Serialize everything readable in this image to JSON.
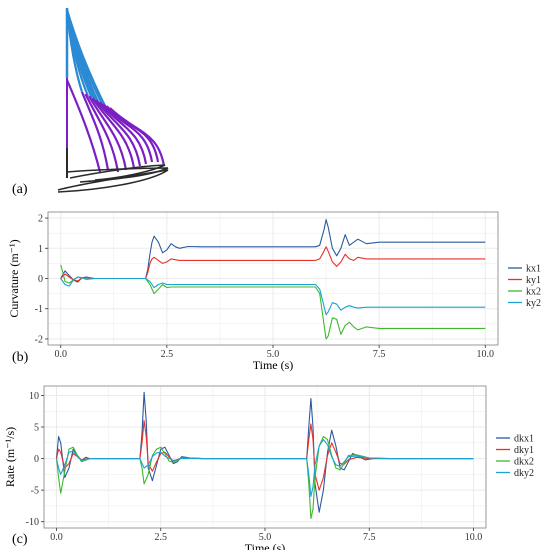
{
  "panel_labels": {
    "a": "(a)",
    "b": "(b)",
    "c": "(c)"
  },
  "colors": {
    "kx1": "#2c5aa0",
    "ky1": "#e8312a",
    "kx2": "#3fb82e",
    "ky2": "#1aa3d4",
    "diagram_blue": "#2a8ad4",
    "diagram_purple": "#7b1fc4",
    "diagram_dark": "#2b2b2b",
    "grid": "#ebebeb",
    "panel_border": "#7f7f7f"
  },
  "chart_data": [
    {
      "type": "line",
      "xlabel": "Time (s)",
      "ylabel": "Curvature (m⁻¹)",
      "xlim": [
        -0.3,
        10.3
      ],
      "ylim": [
        -2.2,
        2.2
      ],
      "xticks": [
        0.0,
        2.5,
        5.0,
        7.5,
        10.0
      ],
      "xtick_labels": [
        "0.0",
        "2.5",
        "5.0",
        "7.5",
        "10.0"
      ],
      "yticks": [
        -2,
        -1,
        0,
        1,
        2
      ],
      "ytick_labels": [
        "-2",
        "-1",
        "0",
        "1",
        "2"
      ],
      "grid": true,
      "legend_position": "right",
      "series": [
        {
          "name": "kx1",
          "x": [
            0,
            0.1,
            0.2,
            0.3,
            0.4,
            0.5,
            0.6,
            0.8,
            1.0,
            2.0,
            2.05,
            2.1,
            2.15,
            2.2,
            2.3,
            2.4,
            2.5,
            2.6,
            2.7,
            2.8,
            3.0,
            3.3,
            4.0,
            5.0,
            6.0,
            6.1,
            6.2,
            6.25,
            6.3,
            6.4,
            6.5,
            6.6,
            6.7,
            6.8,
            6.9,
            7.0,
            7.2,
            7.5,
            8.0,
            9.0,
            10.0
          ],
          "y": [
            0,
            0.25,
            0.1,
            -0.05,
            -0.12,
            0.02,
            0.05,
            0,
            0,
            0,
            0.3,
            0.8,
            1.2,
            1.4,
            1.2,
            0.85,
            0.95,
            1.15,
            1.05,
            1.0,
            1.06,
            1.05,
            1.05,
            1.05,
            1.05,
            1.1,
            1.6,
            1.95,
            1.7,
            1.0,
            0.75,
            1.0,
            1.45,
            1.1,
            1.2,
            1.3,
            1.15,
            1.2,
            1.2,
            1.2,
            1.2
          ]
        },
        {
          "name": "ky1",
          "x": [
            0,
            0.1,
            0.2,
            0.3,
            0.4,
            0.5,
            0.6,
            0.8,
            1.0,
            2.0,
            2.05,
            2.1,
            2.15,
            2.2,
            2.3,
            2.4,
            2.5,
            2.6,
            2.8,
            3.0,
            4.0,
            5.0,
            6.0,
            6.1,
            6.2,
            6.25,
            6.3,
            6.4,
            6.5,
            6.6,
            6.7,
            6.8,
            6.9,
            7.0,
            7.2,
            7.5,
            8.0,
            9.0,
            10.0
          ],
          "y": [
            0,
            0.15,
            0.05,
            -0.05,
            -0.08,
            0.02,
            0.03,
            0,
            0,
            0,
            0.2,
            0.5,
            0.65,
            0.7,
            0.6,
            0.5,
            0.55,
            0.65,
            0.6,
            0.6,
            0.6,
            0.6,
            0.6,
            0.65,
            0.9,
            1.05,
            0.9,
            0.55,
            0.4,
            0.55,
            0.8,
            0.65,
            0.6,
            0.7,
            0.65,
            0.65,
            0.65,
            0.65,
            0.65
          ]
        },
        {
          "name": "kx2",
          "x": [
            0,
            0.05,
            0.1,
            0.2,
            0.3,
            0.4,
            0.5,
            0.6,
            0.8,
            1.0,
            2.0,
            2.1,
            2.2,
            2.3,
            2.4,
            2.5,
            2.6,
            2.8,
            3.0,
            3.3,
            4.0,
            5.0,
            6.0,
            6.1,
            6.2,
            6.25,
            6.3,
            6.4,
            6.5,
            6.6,
            6.7,
            6.8,
            6.9,
            7.0,
            7.2,
            7.5,
            8.0,
            9.0,
            10.0
          ],
          "y": [
            0.45,
            0.2,
            -0.1,
            -0.15,
            -0.05,
            0.05,
            0.02,
            -0.03,
            0,
            0,
            0,
            -0.2,
            -0.5,
            -0.35,
            -0.2,
            -0.3,
            -0.28,
            -0.28,
            -0.28,
            -0.28,
            -0.28,
            -0.28,
            -0.28,
            -0.5,
            -1.5,
            -2.0,
            -1.9,
            -1.3,
            -1.35,
            -1.85,
            -1.55,
            -1.45,
            -1.6,
            -1.7,
            -1.6,
            -1.65,
            -1.65,
            -1.65,
            -1.65
          ]
        },
        {
          "name": "ky2",
          "x": [
            0,
            0.1,
            0.2,
            0.3,
            0.4,
            0.5,
            0.6,
            0.8,
            1.0,
            2.0,
            2.1,
            2.2,
            2.3,
            2.4,
            2.5,
            2.6,
            2.8,
            3.0,
            4.0,
            5.0,
            6.0,
            6.1,
            6.2,
            6.25,
            6.3,
            6.4,
            6.5,
            6.6,
            6.7,
            6.8,
            6.9,
            7.0,
            7.2,
            7.5,
            8.0,
            9.0,
            10.0
          ],
          "y": [
            0,
            -0.2,
            -0.25,
            -0.05,
            0.05,
            0.03,
            -0.02,
            0,
            0,
            0,
            -0.1,
            -0.3,
            -0.2,
            -0.15,
            -0.2,
            -0.2,
            -0.2,
            -0.2,
            -0.2,
            -0.2,
            -0.2,
            -0.35,
            -0.9,
            -1.2,
            -1.1,
            -0.8,
            -0.85,
            -1.05,
            -0.95,
            -0.9,
            -0.95,
            -0.98,
            -0.95,
            -0.95,
            -0.95,
            -0.95,
            -0.95
          ]
        }
      ]
    },
    {
      "type": "line",
      "xlabel": "Time (s)",
      "ylabel": "Rate (m⁻¹/s)",
      "xlim": [
        -0.3,
        10.3
      ],
      "ylim": [
        -11,
        11.5
      ],
      "xticks": [
        0.0,
        2.5,
        5.0,
        7.5,
        10.0
      ],
      "xtick_labels": [
        "0.0",
        "2.5",
        "5.0",
        "7.5",
        "10.0"
      ],
      "yticks": [
        -10,
        -5,
        0,
        5,
        10
      ],
      "ytick_labels": [
        "-10",
        "-5",
        "0",
        "5",
        "10"
      ],
      "grid": true,
      "legend_position": "right",
      "series": [
        {
          "name": "dkx1",
          "x": [
            0,
            0.05,
            0.1,
            0.2,
            0.3,
            0.4,
            0.5,
            0.6,
            0.7,
            0.8,
            1.0,
            2.0,
            2.05,
            2.1,
            2.15,
            2.2,
            2.3,
            2.4,
            2.5,
            2.6,
            2.7,
            2.8,
            2.9,
            3.0,
            3.2,
            3.5,
            4.0,
            5.0,
            6.0,
            6.05,
            6.1,
            6.15,
            6.2,
            6.3,
            6.4,
            6.5,
            6.6,
            6.7,
            6.8,
            6.9,
            7.0,
            7.1,
            7.2,
            7.4,
            7.6,
            8.0,
            10.0
          ],
          "y": [
            0,
            3.5,
            2.5,
            -3.0,
            -1.5,
            1.5,
            0.5,
            -0.3,
            0.2,
            0,
            0,
            0,
            4.0,
            10.5,
            6.0,
            -1.5,
            -3.5,
            -1.0,
            1.5,
            1.8,
            0.5,
            -0.8,
            -0.5,
            0.3,
            0.1,
            0,
            0,
            0,
            0,
            5.0,
            9.5,
            5.0,
            -4.0,
            -8.5,
            -5.0,
            1.0,
            4.5,
            2.0,
            -1.5,
            -1.8,
            -0.5,
            0.8,
            0.5,
            -0.2,
            0,
            0,
            0
          ]
        },
        {
          "name": "dky1",
          "x": [
            0,
            0.05,
            0.1,
            0.2,
            0.3,
            0.4,
            0.5,
            0.6,
            0.8,
            1.0,
            2.0,
            2.05,
            2.1,
            2.15,
            2.2,
            2.3,
            2.4,
            2.5,
            2.6,
            2.7,
            2.8,
            3.0,
            3.5,
            4.0,
            5.0,
            6.0,
            6.05,
            6.1,
            6.15,
            6.2,
            6.3,
            6.4,
            6.5,
            6.6,
            6.7,
            6.8,
            6.9,
            7.0,
            7.2,
            7.5,
            8.0,
            10.0
          ],
          "y": [
            0,
            1.5,
            1.0,
            -1.5,
            -0.8,
            0.8,
            0.3,
            -0.2,
            0,
            0,
            0,
            2.5,
            6.0,
            3.5,
            -0.8,
            -2.0,
            -0.5,
            0.8,
            1.0,
            0.3,
            -0.4,
            0.1,
            0,
            0,
            0,
            0,
            3.0,
            5.5,
            3.0,
            -2.5,
            -5.0,
            -3.0,
            0.5,
            2.5,
            1.0,
            -0.8,
            -0.9,
            -0.2,
            0.2,
            0,
            0,
            0
          ]
        },
        {
          "name": "dkx2",
          "x": [
            0,
            0.05,
            0.1,
            0.2,
            0.3,
            0.4,
            0.5,
            0.6,
            0.8,
            1.0,
            2.0,
            2.05,
            2.1,
            2.2,
            2.3,
            2.4,
            2.5,
            2.6,
            2.7,
            2.8,
            3.0,
            3.5,
            4.0,
            5.0,
            6.0,
            6.05,
            6.1,
            6.15,
            6.2,
            6.3,
            6.4,
            6.5,
            6.6,
            6.7,
            6.8,
            6.9,
            7.0,
            7.2,
            7.5,
            8.0,
            10.0
          ],
          "y": [
            0,
            -3.0,
            -5.5,
            -2.0,
            1.5,
            1.8,
            0.5,
            -0.5,
            0,
            0,
            0,
            -1.5,
            -4.0,
            -2.5,
            0.5,
            1.5,
            1.8,
            0.8,
            -0.4,
            -0.6,
            0.1,
            0,
            0,
            0,
            0,
            -4.0,
            -9.5,
            -8.0,
            -3.0,
            2.0,
            3.5,
            3.0,
            0.5,
            -1.5,
            -1.8,
            -0.8,
            0.5,
            0.6,
            0.1,
            0,
            0
          ]
        },
        {
          "name": "dky2",
          "x": [
            0,
            0.05,
            0.1,
            0.2,
            0.3,
            0.4,
            0.5,
            0.6,
            0.8,
            1.0,
            2.0,
            2.1,
            2.2,
            2.3,
            2.4,
            2.5,
            2.6,
            2.8,
            3.0,
            3.5,
            4.0,
            5.0,
            6.0,
            6.05,
            6.1,
            6.15,
            6.2,
            6.3,
            6.4,
            6.5,
            6.6,
            6.7,
            6.8,
            6.9,
            7.0,
            7.2,
            7.5,
            8.0,
            10.0
          ],
          "y": [
            0,
            -1.5,
            -2.5,
            -1.0,
            1.0,
            1.2,
            0.3,
            -0.3,
            0,
            0,
            0,
            -1.5,
            -1.0,
            0.3,
            0.9,
            1.0,
            0.4,
            -0.3,
            0,
            0,
            0,
            0,
            0,
            -2.5,
            -6.0,
            -4.5,
            -1.0,
            2.0,
            3.0,
            2.2,
            0.3,
            -1.0,
            -1.2,
            -0.5,
            0.3,
            0.4,
            0.1,
            0,
            0
          ]
        }
      ]
    }
  ]
}
